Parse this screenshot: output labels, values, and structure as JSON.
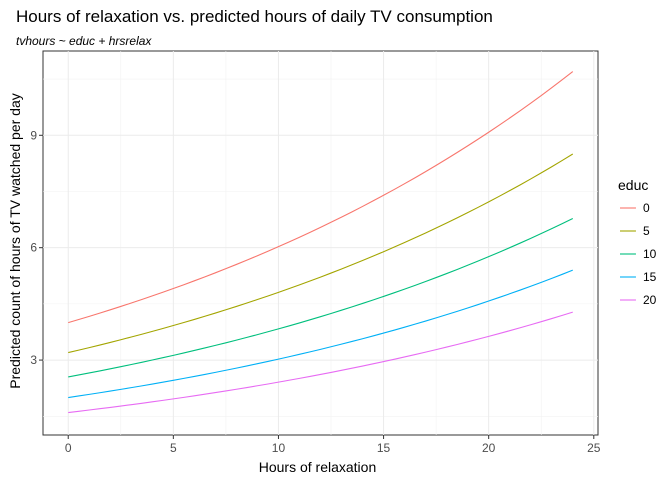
{
  "chart_data": {
    "type": "line",
    "title": "Hours of relaxation vs. predicted hours of daily TV consumption",
    "subtitle": "tvhours ~ educ + hrsrelax",
    "xlabel": "Hours of relaxation",
    "ylabel": "Predicted count of hours of TV watched per day",
    "xlim": [
      -1.2,
      25.2
    ],
    "ylim": [
      1.0,
      11.25
    ],
    "xticks": [
      0,
      5,
      10,
      15,
      20,
      25
    ],
    "yticks": [
      3,
      6,
      9
    ],
    "grid": true,
    "legend": {
      "title": "educ",
      "position": "right"
    },
    "x": [
      0,
      24
    ],
    "series": [
      {
        "name": "0",
        "color": "#F8766D",
        "start": 4.0,
        "end": 10.7
      },
      {
        "name": "5",
        "color": "#A3A500",
        "start": 3.2,
        "end": 8.5
      },
      {
        "name": "10",
        "color": "#00BF7D",
        "start": 2.55,
        "end": 6.78
      },
      {
        "name": "15",
        "color": "#00B0F6",
        "start": 2.0,
        "end": 5.4
      },
      {
        "name": "20",
        "color": "#E76BF3",
        "start": 1.6,
        "end": 4.28
      }
    ]
  }
}
